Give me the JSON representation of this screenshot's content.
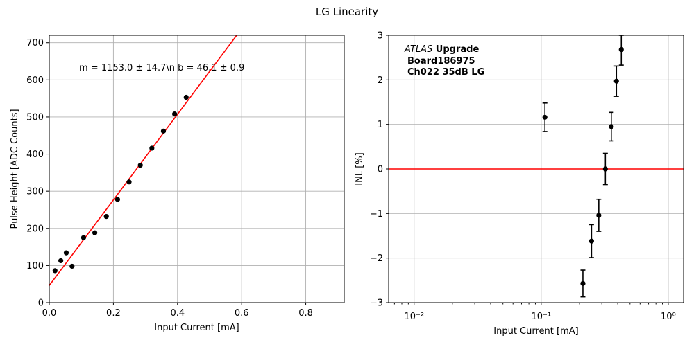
{
  "figure_title": "LG Linearity",
  "chart_data": [
    {
      "type": "scatter",
      "panel": "left",
      "title": "",
      "xlabel": "Input Current [mA]",
      "ylabel": "Pulse Height [ADC Counts]",
      "xlim": [
        0,
        0.92
      ],
      "ylim": [
        0,
        720
      ],
      "xticks": [
        0.0,
        0.2,
        0.4,
        0.6,
        0.8
      ],
      "xtick_labels": [
        "0.0",
        "0.2",
        "0.4",
        "0.6",
        "0.8"
      ],
      "yticks": [
        0,
        100,
        200,
        300,
        400,
        500,
        600,
        700
      ],
      "ytick_labels": [
        "0",
        "100",
        "200",
        "300",
        "400",
        "500",
        "600",
        "700"
      ],
      "grid": true,
      "annotation": "m = 1153.0 ± 14.7\\n b = 46.1 ± 0.9",
      "series": [
        {
          "marker_color": "#000000",
          "x": [
            0.018,
            0.036,
            0.053,
            0.071,
            0.107,
            0.142,
            0.178,
            0.213,
            0.249,
            0.284,
            0.32,
            0.356,
            0.391,
            0.427
          ],
          "y": [
            86,
            113,
            134,
            98,
            175,
            188,
            232,
            278,
            325,
            370,
            416,
            462,
            508,
            553
          ]
        }
      ],
      "fit_line": {
        "color": "#ff0000",
        "slope": 1153.0,
        "intercept": 46.1
      }
    },
    {
      "type": "scatter",
      "panel": "right",
      "title": "",
      "xlabel": "Input Current [mA]",
      "ylabel": "INL [%]",
      "xscale": "log",
      "xlim": [
        0.0063,
        1.32
      ],
      "ylim": [
        -3,
        3
      ],
      "xticks": [
        0.01,
        0.1,
        1
      ],
      "xtick_labels": [
        "10⁻²",
        "10⁻¹",
        "10⁰"
      ],
      "yticks": [
        -3,
        -2,
        -1,
        0,
        1,
        2,
        3
      ],
      "ytick_labels": [
        "−3",
        "−2",
        "−1",
        "0",
        "1",
        "2",
        "3"
      ],
      "grid": true,
      "label_lines": [
        "ATLAS Upgrade",
        "Board186975",
        "Ch022 35dB LG"
      ],
      "reference_line": {
        "y": 0,
        "color": "#ff0000"
      },
      "series": [
        {
          "marker_color": "#000000",
          "x": [
            0.107,
            0.213,
            0.249,
            0.284,
            0.32,
            0.356,
            0.391,
            0.427
          ],
          "y": [
            1.16,
            -2.57,
            -1.62,
            -1.04,
            0.0,
            0.95,
            1.97,
            2.68
          ],
          "yerr": [
            0.32,
            0.3,
            0.37,
            0.36,
            0.35,
            0.32,
            0.34,
            0.35
          ]
        }
      ]
    }
  ]
}
